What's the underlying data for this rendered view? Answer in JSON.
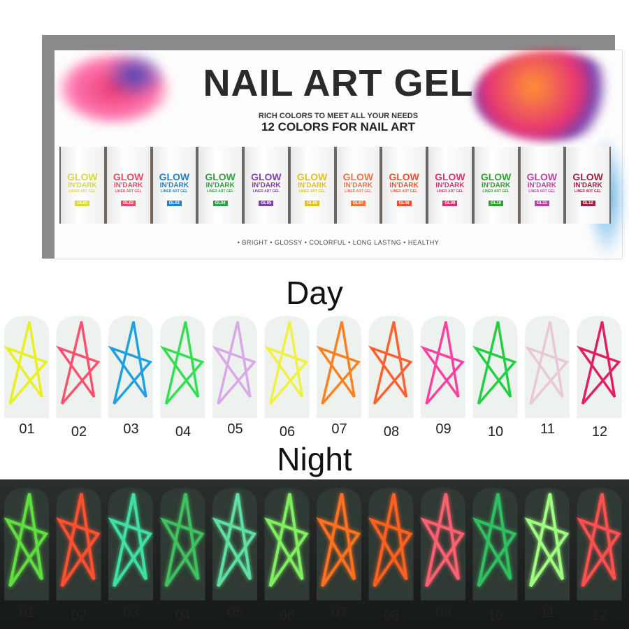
{
  "box": {
    "title": "NAIL ART GEL",
    "subtitle": "RICH COLORS TO MEET ALL YOUR NEEDS",
    "subtitle2": "12 COLORS FOR NAIL ART",
    "bullets": "• BRIGHT  • GLOSSY  • COLORFUL  • LONG LASTNG  • HEALTHY",
    "bottles": [
      {
        "glow": "GLOW",
        "dark": "IN'DARK",
        "liner": "LINER ART GEL",
        "code": "GL01",
        "color": "#d8d840"
      },
      {
        "glow": "GLOW",
        "dark": "IN'DARK",
        "liner": "LINER ART GEL",
        "code": "GL02",
        "color": "#e84860"
      },
      {
        "glow": "GLOW",
        "dark": "IN'DARK",
        "liner": "LINER ART GEL",
        "code": "GL03",
        "color": "#2080c8"
      },
      {
        "glow": "GLOW",
        "dark": "IN'DARK",
        "liner": "LINER ART GEL",
        "code": "GL04",
        "color": "#30a040"
      },
      {
        "glow": "GLOW",
        "dark": "IN'DARK",
        "liner": "LINER ART GEL",
        "code": "GL05",
        "color": "#8040b0"
      },
      {
        "glow": "GLOW",
        "dark": "IN'DARK",
        "liner": "LINER ART GEL",
        "code": "GL06",
        "color": "#e0c020"
      },
      {
        "glow": "GLOW",
        "dark": "IN'DARK",
        "liner": "LINER ART GEL",
        "code": "GL07",
        "color": "#f07040"
      },
      {
        "glow": "GLOW",
        "dark": "IN'DARK",
        "liner": "LINER ART GEL",
        "code": "GL08",
        "color": "#f05030"
      },
      {
        "glow": "GLOW",
        "dark": "IN'DARK",
        "liner": "LINER ART GEL",
        "code": "GL09",
        "color": "#e03070"
      },
      {
        "glow": "GLOW",
        "dark": "IN'DARK",
        "liner": "LINER ART GEL",
        "code": "GL10",
        "color": "#30a030"
      },
      {
        "glow": "GLOW",
        "dark": "IN'DARK",
        "liner": "LINER ART GEL",
        "code": "GL11",
        "color": "#c040a0"
      },
      {
        "glow": "GLOW",
        "dark": "IN'DARK",
        "liner": "LINER ART GEL",
        "code": "GL12",
        "color": "#a02040"
      }
    ]
  },
  "day_label": "Day",
  "night_label": "Night",
  "day_nails": [
    {
      "num": "01",
      "color": "#e8f020"
    },
    {
      "num": "02",
      "color": "#ff5070"
    },
    {
      "num": "03",
      "color": "#20a0e0"
    },
    {
      "num": "04",
      "color": "#30e050"
    },
    {
      "num": "05",
      "color": "#d8a8e8"
    },
    {
      "num": "06",
      "color": "#f0f040"
    },
    {
      "num": "07",
      "color": "#ff8020"
    },
    {
      "num": "08",
      "color": "#ff6030"
    },
    {
      "num": "09",
      "color": "#ff40a0"
    },
    {
      "num": "10",
      "color": "#20d040"
    },
    {
      "num": "11",
      "color": "#e8c8d8"
    },
    {
      "num": "12",
      "color": "#e02060"
    }
  ],
  "night_nails": [
    {
      "num": "01",
      "color": "#60e040"
    },
    {
      "num": "02",
      "color": "#ff5030"
    },
    {
      "num": "03",
      "color": "#40e0a0"
    },
    {
      "num": "04",
      "color": "#40c060"
    },
    {
      "num": "05",
      "color": "#60e0a0"
    },
    {
      "num": "06",
      "color": "#80f060"
    },
    {
      "num": "07",
      "color": "#ff7020"
    },
    {
      "num": "08",
      "color": "#ff6020"
    },
    {
      "num": "09",
      "color": "#ff6070"
    },
    {
      "num": "10",
      "color": "#30c060"
    },
    {
      "num": "11",
      "color": "#a0ff80"
    },
    {
      "num": "12",
      "color": "#ff5050"
    }
  ]
}
